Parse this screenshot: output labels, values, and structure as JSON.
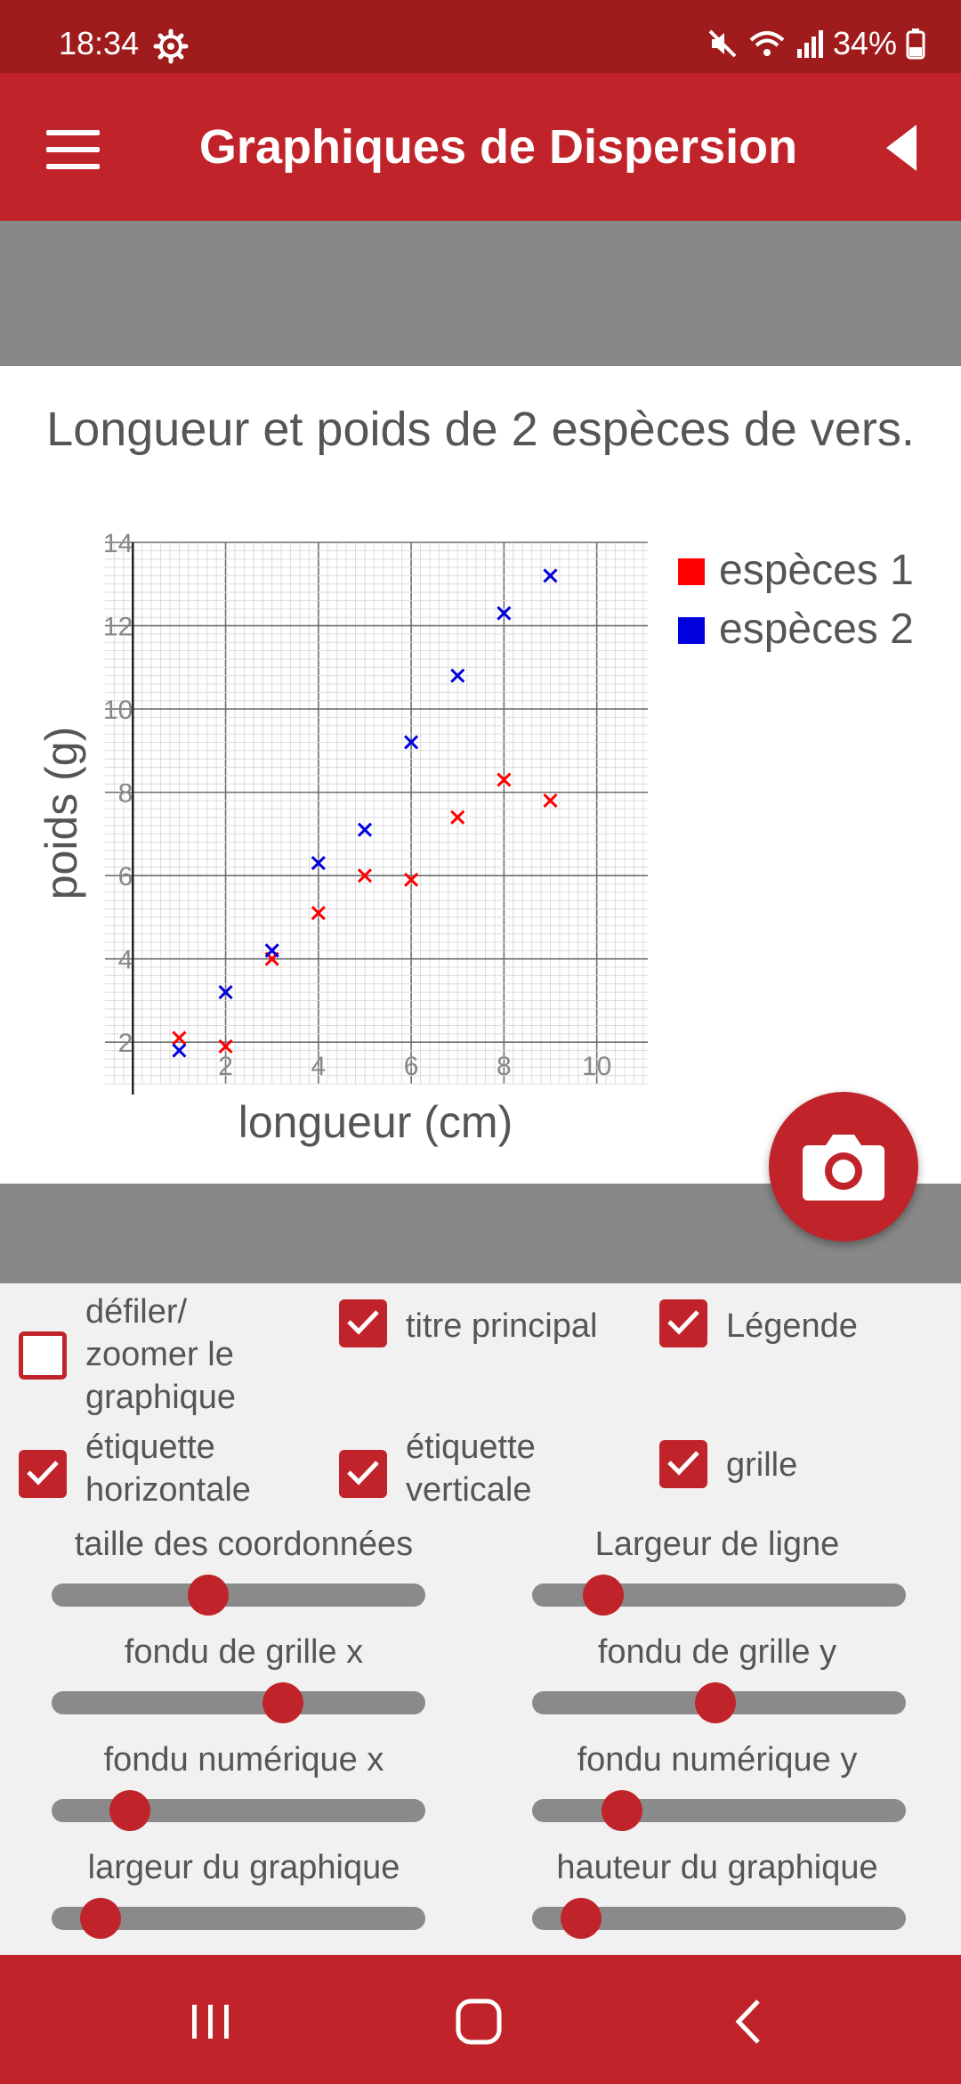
{
  "status_bar": {
    "time": "18:34",
    "battery": "34%",
    "icons": [
      "settings-gear-icon",
      "mute-icon",
      "wifi-icon",
      "signal-icon",
      "battery-icon"
    ]
  },
  "app_bar": {
    "title": "Graphiques de Dispersion",
    "menu_icon": "hamburger-menu-icon",
    "back_icon": "back-triangle-icon"
  },
  "chart_data": {
    "type": "scatter",
    "title": "Longueur et poids de 2 espèces de vers.",
    "xlabel": "longueur (cm)",
    "ylabel": "poids (g)",
    "xlim": [
      -0.6,
      11.1
    ],
    "ylim": [
      1,
      14
    ],
    "xticks": [
      2,
      4,
      6,
      8,
      10
    ],
    "yticks": [
      2,
      4,
      6,
      8,
      10,
      12,
      14
    ],
    "xtick_labels": [
      "2",
      "4",
      "6",
      "8",
      "10"
    ],
    "ytick_labels": [
      "2",
      "4",
      "6",
      "8",
      "10",
      "12",
      "14"
    ],
    "grid": true,
    "legend_position": "top-right",
    "marker": "x",
    "series": [
      {
        "name": "espèces 1",
        "color": "#ff0000",
        "x": [
          1,
          2,
          3,
          4,
          5,
          6,
          7,
          8,
          9
        ],
        "y": [
          2.1,
          1.9,
          4.0,
          5.1,
          6.0,
          5.9,
          7.4,
          8.3,
          7.8
        ]
      },
      {
        "name": "espèces 2",
        "color": "#0000dd",
        "x": [
          1,
          2,
          3,
          4,
          5,
          6,
          7,
          8,
          9
        ],
        "y": [
          1.8,
          3.2,
          4.2,
          6.3,
          7.1,
          9.2,
          10.8,
          12.3,
          13.2
        ]
      }
    ]
  },
  "fab": {
    "icon": "camera-icon"
  },
  "checkboxes": [
    {
      "id": "scroll-zoom",
      "label": "défiler/ zoomer le graphique",
      "checked": false
    },
    {
      "id": "main-title",
      "label": "titre principal",
      "checked": true
    },
    {
      "id": "legend",
      "label": "Légende",
      "checked": true
    },
    {
      "id": "horizontal-label",
      "label": "étiquette horizontale",
      "checked": true
    },
    {
      "id": "vertical-label",
      "label": "étiquette verticale",
      "checked": true
    },
    {
      "id": "grid",
      "label": "grille",
      "checked": true
    }
  ],
  "sliders": [
    {
      "id": "coord-size",
      "label": "taille des coordonnées",
      "value": 0.42
    },
    {
      "id": "line-width",
      "label": "Largeur de ligne",
      "value": 0.19
    },
    {
      "id": "grid-fade-x",
      "label": "fondu de grille x",
      "value": 0.62
    },
    {
      "id": "grid-fade-y",
      "label": "fondu de grille y",
      "value": 0.49
    },
    {
      "id": "numeric-fade-x",
      "label": "fondu numérique x",
      "value": 0.21
    },
    {
      "id": "numeric-fade-y",
      "label": "fondu numérique y",
      "value": 0.24
    },
    {
      "id": "chart-width",
      "label": "largeur du graphique",
      "value": 0.13
    },
    {
      "id": "chart-height",
      "label": "hauteur du graphique",
      "value": 0.13
    }
  ],
  "nav_bar": {
    "icons": [
      "recent-apps-icon",
      "home-icon",
      "back-icon"
    ]
  }
}
